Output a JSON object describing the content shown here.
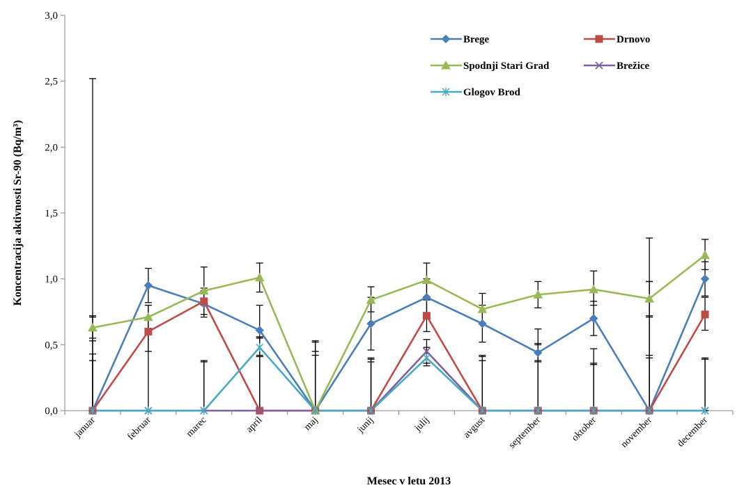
{
  "chart_data": {
    "type": "line",
    "xlabel": "Mesec v letu 2013",
    "ylabel": "Koncentracija aktivnosti Sr-90 (Bq/m³)",
    "ylim": [
      0,
      3
    ],
    "yticks": [
      "0,0",
      "0,5",
      "1,0",
      "1,5",
      "2,0",
      "2,5",
      "3,0"
    ],
    "yticks_values": [
      0,
      0.5,
      1.0,
      1.5,
      2.0,
      2.5,
      3.0
    ],
    "categories": [
      "januar",
      "februar",
      "marec",
      "april",
      "maj",
      "junij",
      "julij",
      "avgust",
      "september",
      "oktober",
      "november",
      "december"
    ],
    "grid": false,
    "legend_position": "top-right",
    "series": [
      {
        "name": "Brege",
        "color": "#4a7ebb",
        "marker": "diamond",
        "values": [
          0,
          0.95,
          0.81,
          0.61,
          0,
          0.66,
          0.86,
          0.66,
          0.44,
          0.7,
          0,
          1.0
        ],
        "err_low": [
          0,
          0.82,
          0.71,
          0.42,
          0,
          0.46,
          0.72,
          0.52,
          0.37,
          0.57,
          0,
          0.87
        ],
        "err_high": [
          0,
          1.08,
          0.91,
          0.8,
          0,
          0.86,
          1.0,
          0.8,
          0.51,
          0.83,
          0,
          1.13
        ]
      },
      {
        "name": "Drnovo",
        "color": "#be4b48",
        "marker": "square",
        "values": [
          0,
          0.6,
          0.83,
          0,
          0,
          0,
          0.72,
          0,
          0,
          0,
          0,
          0.73
        ],
        "err_low": [
          0,
          0.45,
          0.73,
          0,
          0,
          0,
          0.6,
          0,
          0,
          0,
          0,
          0.61
        ],
        "err_high": [
          0,
          0.8,
          0.93,
          0,
          0,
          0,
          0.84,
          0,
          0,
          0,
          0,
          0.86
        ]
      },
      {
        "name": "Spodnji Stari Grad",
        "color": "#98b954",
        "marker": "triangle",
        "values": [
          0.63,
          0.71,
          0.91,
          1.01,
          0,
          0.84,
          0.99,
          0.77,
          0.88,
          0.92,
          0.85,
          1.18
        ],
        "err_low": [
          0.55,
          0.6,
          0.8,
          0.9,
          0,
          0.75,
          0.86,
          0.66,
          0.78,
          0.8,
          0.72,
          1.07
        ],
        "err_high": [
          0.71,
          0.8,
          1.09,
          1.12,
          0,
          0.94,
          1.12,
          0.89,
          0.98,
          1.06,
          0.98,
          1.3
        ]
      },
      {
        "name": "Brežice",
        "color": "#7d60a0",
        "marker": "x",
        "values": [
          0,
          0,
          0,
          0,
          0,
          0,
          0.45,
          0,
          0,
          0,
          0,
          0
        ],
        "err_low": [
          0,
          0,
          0,
          0,
          0,
          0,
          0.36,
          0,
          0,
          0,
          0,
          0
        ],
        "err_high": [
          0,
          0,
          0,
          0,
          0,
          0,
          0.54,
          0,
          0,
          0,
          0,
          0
        ]
      },
      {
        "name": "Glogov Brod",
        "color": "#46aac5",
        "marker": "star",
        "values": [
          0,
          0,
          0,
          0.48,
          0,
          0,
          0.4,
          0,
          0,
          0,
          0,
          0
        ],
        "err_low": [
          0,
          0,
          0,
          0.41,
          0,
          0,
          0.34,
          0,
          0,
          0,
          0,
          0
        ],
        "err_high": [
          0,
          0,
          0,
          0.56,
          0,
          0,
          0.48,
          0,
          0,
          0,
          0,
          0
        ]
      }
    ],
    "zero_value_upper_errors": [
      [
        2.52,
        0.72,
        0.53,
        0.43,
        0.38
      ],
      [
        0.6
      ],
      [
        0.38,
        0.37
      ],
      [
        0.56,
        0.55,
        0.41
      ],
      [
        0.53,
        0.52,
        0.45,
        0.42
      ],
      [
        0.4,
        0.39,
        0.37
      ],
      [],
      [
        0.42,
        0.41,
        0.38
      ],
      [
        0.62,
        0.5,
        0.38
      ],
      [
        0.47,
        0.36,
        0.35
      ],
      [
        1.31,
        0.98,
        0.71,
        0.42,
        0.4
      ],
      [
        0.4,
        0.39
      ]
    ]
  }
}
